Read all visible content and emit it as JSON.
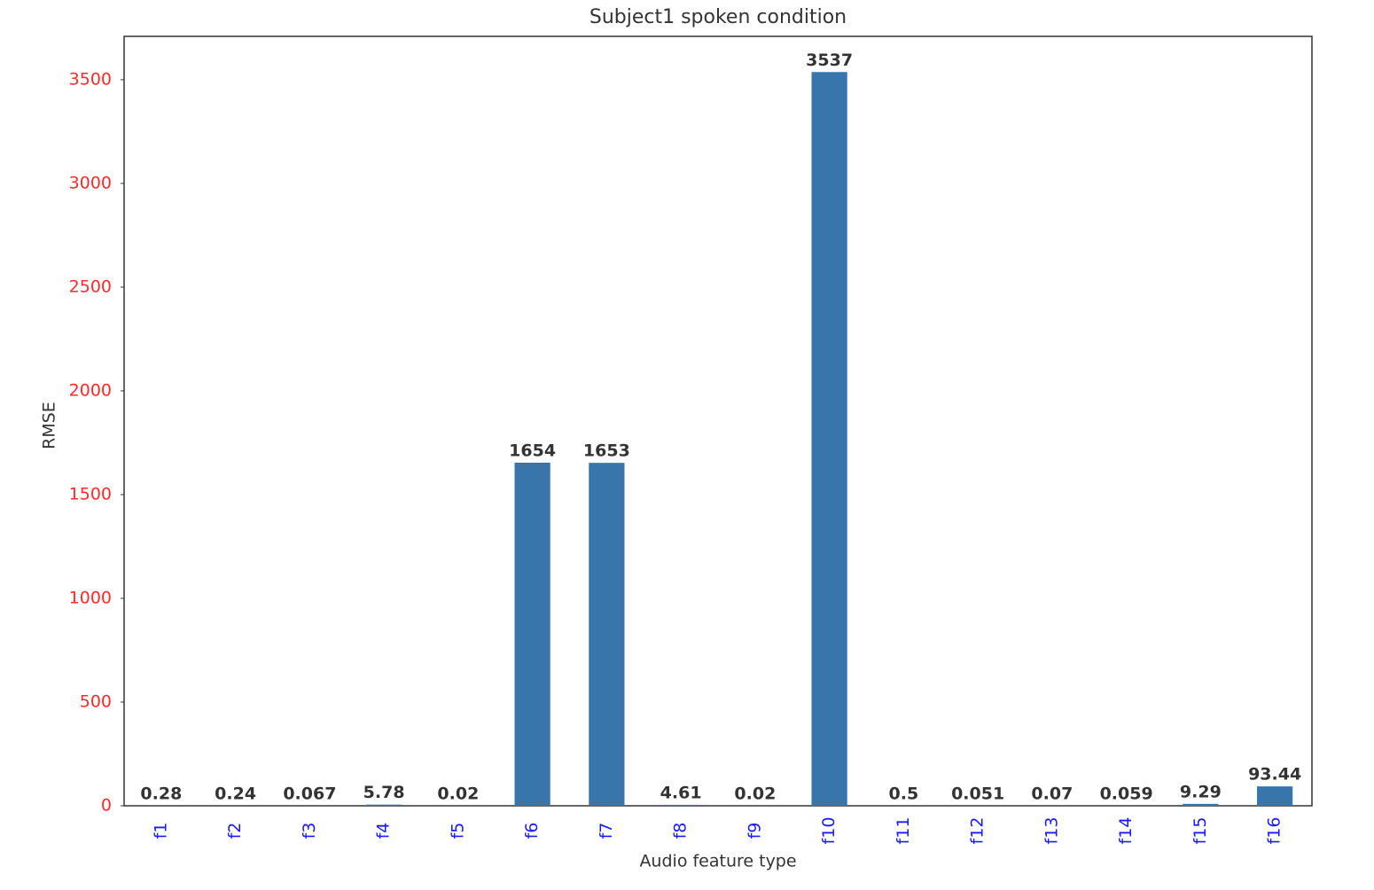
{
  "chart_data": {
    "type": "bar",
    "title": "Subject1 spoken condition",
    "x_label": "Audio feature type",
    "y_label": "RMSE",
    "categories": [
      "f1",
      "f2",
      "f3",
      "f4",
      "f5",
      "f6",
      "f7",
      "f8",
      "f9",
      "f10",
      "f11",
      "f12",
      "f13",
      "f14",
      "f15",
      "f16"
    ],
    "values": [
      0.28,
      0.24,
      0.067,
      5.78,
      0.02,
      1654,
      1653,
      4.61,
      0.02,
      3537,
      0.5,
      0.051,
      0.07,
      0.059,
      9.29,
      93.44
    ],
    "color": "#3775ab",
    "ylim": [
      0,
      3709
    ],
    "yticks": [
      0,
      500,
      1000,
      1500,
      2000,
      2500,
      3000,
      3500
    ],
    "ytick_color": "#ff2a2a",
    "xtick_color": "#1a1aff",
    "grid": false
  }
}
